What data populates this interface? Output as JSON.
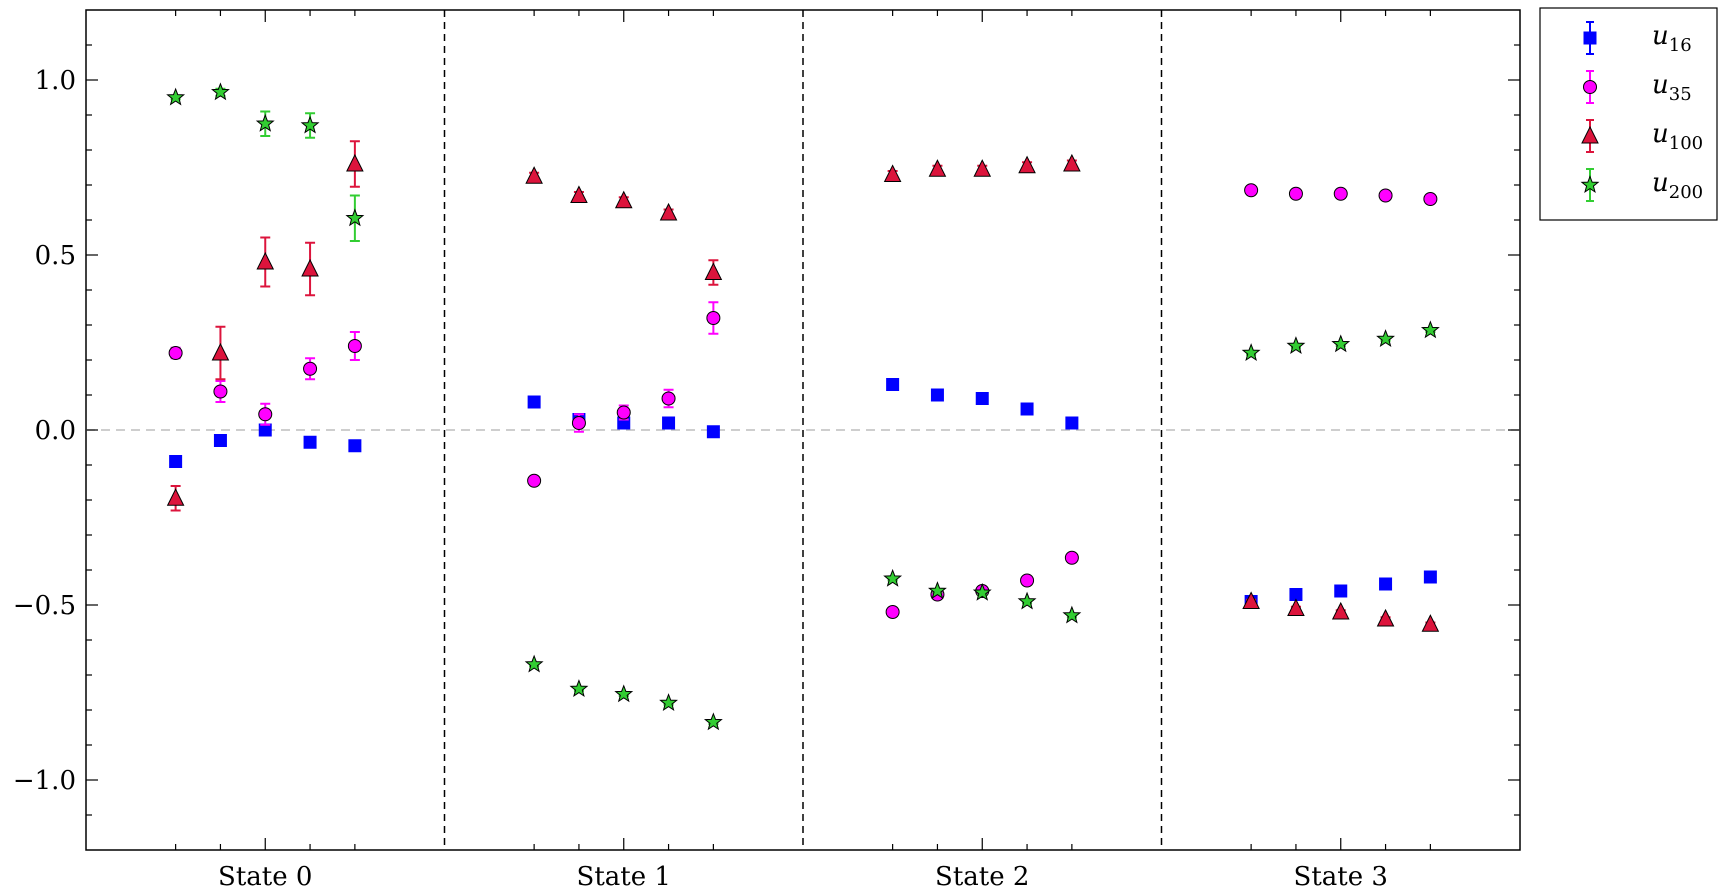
{
  "chart_data": {
    "type": "scatter",
    "title": "",
    "xlabel": "",
    "ylabel": "",
    "categories": [
      "State 0",
      "State 1",
      "State 2",
      "State 3"
    ],
    "ylim": [
      -1.2,
      1.2
    ],
    "yticks": [
      -1.0,
      -0.5,
      0.0,
      0.5,
      1.0
    ],
    "ytick_labels": [
      "−1.0",
      "−0.5",
      "0.0",
      "0.5",
      "1.0"
    ],
    "x_offsets": [
      -0.5,
      -0.25,
      0.0,
      0.25,
      0.5
    ],
    "reference_line": 0.0,
    "grid": false,
    "legend": "outside-top-right",
    "series": [
      {
        "name": "u16",
        "label_base": "u",
        "label_sub": "16",
        "marker": "square",
        "color": "#0000ff",
        "values": [
          [
            -0.09,
            -0.03,
            0.0,
            -0.035,
            -0.045
          ],
          [
            0.08,
            0.03,
            0.02,
            0.02,
            -0.005
          ],
          [
            0.13,
            0.1,
            0.09,
            0.06,
            0.02
          ],
          [
            -0.49,
            -0.47,
            -0.46,
            -0.44,
            -0.42
          ]
        ],
        "errors": [
          [
            0.005,
            0.005,
            0.005,
            0.005,
            0.005
          ],
          [
            0.005,
            0.005,
            0.005,
            0.005,
            0.005
          ],
          [
            0.005,
            0.005,
            0.005,
            0.005,
            0.005
          ],
          [
            0.005,
            0.005,
            0.005,
            0.005,
            0.005
          ]
        ]
      },
      {
        "name": "u35",
        "label_base": "u",
        "label_sub": "35",
        "marker": "circle",
        "color": "#ff00ff",
        "values": [
          [
            0.22,
            0.11,
            0.045,
            0.175,
            0.24
          ],
          [
            -0.145,
            0.02,
            0.05,
            0.09,
            0.32
          ],
          [
            -0.52,
            -0.47,
            -0.46,
            -0.43,
            -0.365
          ],
          [
            0.685,
            0.675,
            0.675,
            0.67,
            0.66
          ]
        ],
        "errors": [
          [
            0.015,
            0.03,
            0.03,
            0.03,
            0.04
          ],
          [
            0.01,
            0.025,
            0.02,
            0.025,
            0.045
          ],
          [
            0.005,
            0.005,
            0.005,
            0.005,
            0.005
          ],
          [
            0.005,
            0.005,
            0.005,
            0.005,
            0.005
          ]
        ]
      },
      {
        "name": "u100",
        "label_base": "u",
        "label_sub": "100",
        "marker": "triangle",
        "color": "#dc143c",
        "values": [
          [
            -0.195,
            0.22,
            0.48,
            0.46,
            0.76
          ],
          [
            0.725,
            0.67,
            0.655,
            0.62,
            0.45
          ],
          [
            0.73,
            0.745,
            0.745,
            0.755,
            0.76
          ],
          [
            -0.49,
            -0.51,
            -0.52,
            -0.54,
            -0.555
          ]
        ],
        "errors": [
          [
            0.035,
            0.075,
            0.07,
            0.075,
            0.065
          ],
          [
            0.01,
            0.01,
            0.01,
            0.01,
            0.035
          ],
          [
            0.01,
            0.01,
            0.01,
            0.01,
            0.01
          ],
          [
            0.005,
            0.005,
            0.005,
            0.005,
            0.005
          ]
        ]
      },
      {
        "name": "u200",
        "label_base": "u",
        "label_sub": "200",
        "marker": "star",
        "color": "#32cd32",
        "values": [
          [
            0.95,
            0.965,
            0.875,
            0.87,
            0.605
          ],
          [
            -0.67,
            -0.74,
            -0.755,
            -0.78,
            -0.835
          ],
          [
            -0.425,
            -0.46,
            -0.465,
            -0.49,
            -0.53
          ],
          [
            0.22,
            0.24,
            0.245,
            0.26,
            0.285
          ]
        ],
        "errors": [
          [
            0.005,
            0.01,
            0.035,
            0.035,
            0.065
          ],
          [
            0.005,
            0.005,
            0.005,
            0.005,
            0.005
          ],
          [
            0.005,
            0.005,
            0.005,
            0.005,
            0.005
          ],
          [
            0.005,
            0.005,
            0.005,
            0.005,
            0.005
          ]
        ]
      }
    ]
  }
}
